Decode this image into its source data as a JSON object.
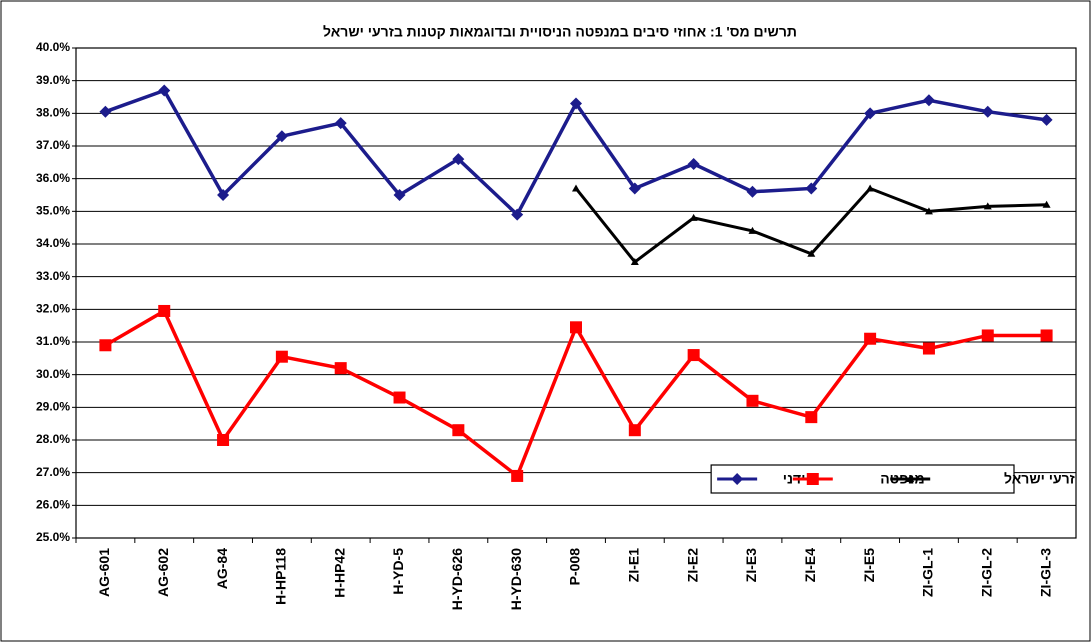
{
  "chart_data": {
    "type": "line",
    "title": "תרשים מס' 1: אחוזי סיבים במנפטה הניסויית ובדוגמאות קטנות בזרעי ישראל",
    "categories": [
      "AG-601",
      "AG-602",
      "AG-84",
      "H-HP118",
      "H-HP42",
      "H-YD-5",
      "H-YD-626",
      "H-YD-630",
      "P-008",
      "ZI-E1",
      "ZI-E2",
      "ZI-E3",
      "ZI-E4",
      "ZI-E5",
      "ZI-GL-1",
      "ZI-GL-2",
      "ZI-GL-3"
    ],
    "series": [
      {
        "name": "ידני",
        "color": "#1c1c8c",
        "marker": "diamond",
        "values": [
          38.05,
          38.7,
          35.5,
          37.3,
          37.7,
          35.5,
          36.6,
          34.9,
          38.3,
          35.7,
          36.45,
          35.6,
          35.7,
          38.0,
          38.4,
          38.05,
          37.8
        ]
      },
      {
        "name": "מנפטה",
        "color": "#ff0000",
        "marker": "square",
        "values": [
          30.9,
          31.95,
          28.0,
          30.55,
          30.2,
          29.3,
          28.3,
          26.9,
          31.45,
          28.3,
          30.6,
          29.2,
          28.7,
          31.1,
          30.8,
          31.2,
          31.2
        ]
      },
      {
        "name": "זרעי ישראל",
        "color": "#000000",
        "marker": "triangle",
        "values": [
          null,
          null,
          null,
          null,
          null,
          null,
          null,
          null,
          35.7,
          33.45,
          34.8,
          34.4,
          33.7,
          35.7,
          35.0,
          35.15,
          35.2
        ]
      }
    ],
    "ylim": [
      25,
      40
    ],
    "yticks": [
      {
        "value": 25,
        "label": "25.0%"
      },
      {
        "value": 26,
        "label": "26.0%"
      },
      {
        "value": 27,
        "label": "27.0%"
      },
      {
        "value": 28,
        "label": "28.0%"
      },
      {
        "value": 29,
        "label": "29.0%"
      },
      {
        "value": 30,
        "label": "30.0%"
      },
      {
        "value": 31,
        "label": "31.0%"
      },
      {
        "value": 32,
        "label": "32.0%"
      },
      {
        "value": 33,
        "label": "33.0%"
      },
      {
        "value": 34,
        "label": "34.0%"
      },
      {
        "value": 35,
        "label": "35.0%"
      },
      {
        "value": 36,
        "label": "36.0%"
      },
      {
        "value": 37,
        "label": "37.0%"
      },
      {
        "value": 38,
        "label": "38.0%"
      },
      {
        "value": 39,
        "label": "39.0%"
      },
      {
        "value": 40,
        "label": "40.0%"
      }
    ],
    "grid": true,
    "legend": "lower right"
  }
}
